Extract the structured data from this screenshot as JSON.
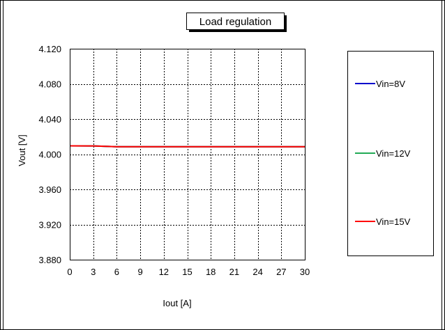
{
  "chart_data": {
    "type": "line",
    "title": "Load regulation",
    "xlabel": "Iout [A]",
    "ylabel": "Vout [V]",
    "xlim": [
      0,
      30
    ],
    "ylim": [
      3.88,
      4.12
    ],
    "x_ticks": [
      "0",
      "3",
      "6",
      "9",
      "12",
      "15",
      "18",
      "21",
      "24",
      "27",
      "30"
    ],
    "y_ticks": [
      "4.120",
      "4.080",
      "4.040",
      "4.000",
      "3.960",
      "3.920",
      "3.880"
    ],
    "grid": true,
    "legend_position": "right",
    "series": [
      {
        "name": "Vin=8V",
        "color": "#0000cc",
        "x": [
          0,
          3,
          6,
          9,
          12,
          15,
          18,
          21,
          24,
          27,
          30
        ],
        "y": [
          4.0095,
          4.0094,
          4.0085,
          4.0085,
          4.0085,
          4.0085,
          4.0085,
          4.0085,
          4.0085,
          4.0085,
          4.0085
        ]
      },
      {
        "name": "Vin=12V",
        "color": "#22aa55",
        "x": [
          0,
          3,
          6,
          9,
          12,
          15,
          18,
          21,
          24,
          27,
          30
        ],
        "y": [
          4.0095,
          4.0094,
          4.0085,
          4.0085,
          4.0085,
          4.0085,
          4.0085,
          4.0085,
          4.0085,
          4.0085,
          4.0085
        ]
      },
      {
        "name": "Vin=15V",
        "color": "#ff0000",
        "x": [
          0,
          3,
          6,
          9,
          12,
          15,
          18,
          21,
          24,
          27,
          30
        ],
        "y": [
          4.0095,
          4.0094,
          4.0085,
          4.0085,
          4.0085,
          4.0085,
          4.0085,
          4.0085,
          4.0085,
          4.0085,
          4.0085
        ]
      }
    ]
  }
}
